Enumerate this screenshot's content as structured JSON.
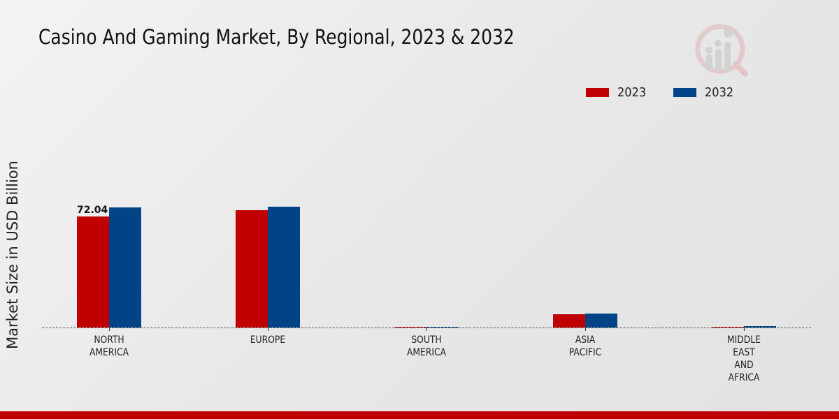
{
  "chart_data": {
    "type": "bar",
    "title": "Casino And Gaming Market, By Regional, 2023 & 2032",
    "xlabel": "",
    "ylabel": "Market Size in USD Billion",
    "categories": [
      "NORTH AMERICA",
      "EUROPE",
      "SOUTH AMERICA",
      "ASIA PACIFIC",
      "MIDDLE EAST AND AFRICA"
    ],
    "category_display": [
      "NORTH\nAMERICA",
      "EUROPE",
      "SOUTH\nAMERICA",
      "ASIA\nPACIFIC",
      "MIDDLE\nEAST\nAND\nAFRICA"
    ],
    "series": [
      {
        "name": "2023",
        "color": "#c00000",
        "values": [
          72.04,
          76.1,
          0.5,
          8.6,
          0.4
        ]
      },
      {
        "name": "2032",
        "color": "#004488",
        "values": [
          77.9,
          78.4,
          0.6,
          9.1,
          0.9
        ]
      }
    ],
    "annotations": [
      {
        "category": "NORTH AMERICA",
        "series": "2023",
        "text": "72.04"
      }
    ],
    "ylim": [
      0,
      140
    ],
    "grid": false,
    "legend_position": "top-right"
  },
  "header": {
    "title": "Casino And Gaming Market, By Regional, 2023 & 2032"
  },
  "legend": {
    "items": [
      {
        "label": "2023",
        "color": "#c00000"
      },
      {
        "label": "2032",
        "color": "#004488"
      }
    ]
  },
  "axis": {
    "ylabel": "Market Size in USD Billion"
  },
  "colors": {
    "accent": "#bf0000",
    "series_2023": "#c00000",
    "series_2032": "#004488"
  }
}
